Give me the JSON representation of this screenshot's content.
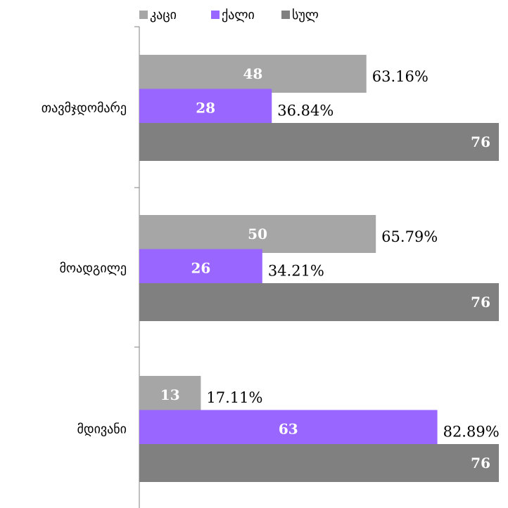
{
  "chart_data": {
    "type": "bar",
    "orientation": "horizontal",
    "categories": [
      "თავმჯდომარე",
      "მოადგილე",
      "მდივანი"
    ],
    "series": [
      {
        "name": "კაცი",
        "values": [
          48,
          50,
          13
        ],
        "percent_labels": [
          "63.16%",
          "65.79%",
          "17.11%"
        ],
        "color": "#a6a6a6"
      },
      {
        "name": "ქალი",
        "values": [
          28,
          26,
          63
        ],
        "percent_labels": [
          "36.84%",
          "34.21%",
          "82.89%"
        ],
        "color": "#9966ff"
      },
      {
        "name": "სულ",
        "values": [
          76,
          76,
          76
        ],
        "color": "#808080"
      }
    ],
    "xlim": [
      0,
      76
    ],
    "legend_position": "top",
    "grid": false
  }
}
